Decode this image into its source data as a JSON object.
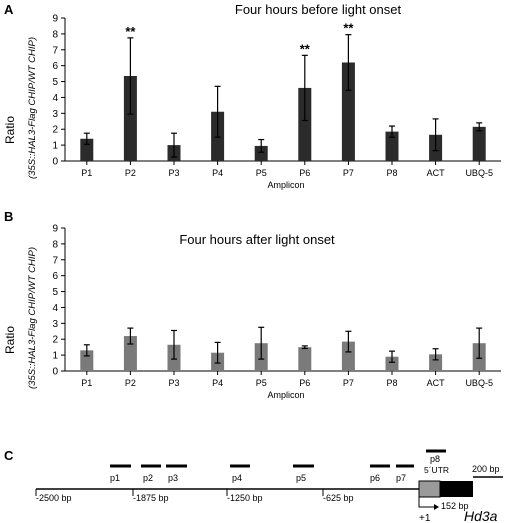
{
  "panel_labels": [
    "A",
    "B",
    "C"
  ],
  "chart_data": [
    {
      "type": "bar",
      "panel": "A",
      "title": "Four hours before light onset",
      "ylabel": "Ratio",
      "ylabel_sub": "(35S::HAL3-Flag CHIP/WT CHIP)",
      "xlabel": "Amplicon",
      "ylim": [
        0,
        9
      ],
      "yticks": [
        "0",
        "1",
        "2",
        "3",
        "4",
        "5",
        "6",
        "7",
        "8",
        "9"
      ],
      "categories": [
        "P1",
        "P2",
        "P3",
        "P4",
        "P5",
        "P6",
        "P7",
        "P8",
        "ACT",
        "UBQ-5"
      ],
      "values": [
        1.4,
        5.35,
        1.0,
        3.1,
        0.95,
        4.6,
        6.2,
        1.85,
        1.65,
        2.15
      ],
      "errors": [
        0.35,
        2.4,
        0.75,
        1.6,
        0.4,
        2.05,
        1.75,
        0.35,
        1.0,
        0.25
      ],
      "significance": [
        "",
        "**",
        "",
        "",
        "",
        "**",
        "**",
        "",
        "",
        ""
      ],
      "bar_color": "#2b2b2b"
    },
    {
      "type": "bar",
      "panel": "B",
      "title": "Four hours after light onset",
      "ylabel": "Ratio",
      "ylabel_sub": "(35S::HAL3-Flag CHIP/WT CHIP)",
      "xlabel": "Amplicon",
      "ylim": [
        0,
        9
      ],
      "yticks": [
        "0",
        "1",
        "2",
        "3",
        "4",
        "5",
        "6",
        "7",
        "8",
        "9"
      ],
      "categories": [
        "P1",
        "P2",
        "P3",
        "P4",
        "P5",
        "P6",
        "P7",
        "P8",
        "ACT",
        "UBQ-5"
      ],
      "values": [
        1.3,
        2.2,
        1.65,
        1.15,
        1.75,
        1.5,
        1.85,
        0.9,
        1.05,
        1.75
      ],
      "errors": [
        0.35,
        0.5,
        0.9,
        0.65,
        1.0,
        0.08,
        0.65,
        0.35,
        0.35,
        0.95
      ],
      "significance": [
        "",
        "",
        "",
        "",
        "",
        "",
        "",
        "",
        "",
        ""
      ],
      "bar_color": "#7a7a7a"
    }
  ],
  "diagram": {
    "positions": [
      "-2500 bp",
      "-1875 bp",
      "-1250 bp",
      "-625 bp"
    ],
    "position_values": [
      -2500,
      -1875,
      -1250,
      -625
    ],
    "amplicons": [
      "p1",
      "p2",
      "p3",
      "p4",
      "p5",
      "p6",
      "p7",
      "p8"
    ],
    "utr_label": "5´UTR",
    "utr_length": "152 bp",
    "intron_length": "200 bp",
    "tss_label": "+1",
    "gene_name": "Hd3a"
  }
}
